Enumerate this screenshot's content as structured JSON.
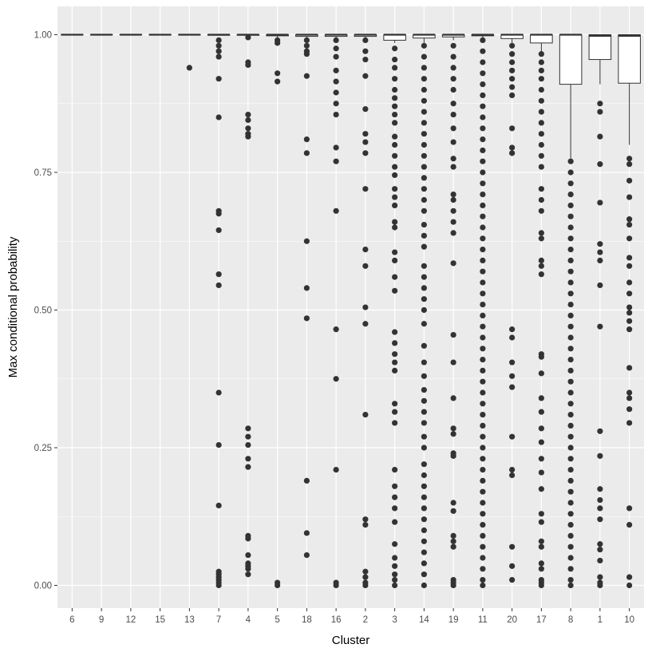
{
  "chart_data": {
    "type": "boxplot",
    "xlabel": "Cluster",
    "ylabel": "Max conditional probability",
    "ylim": [
      -0.045,
      1.05
    ],
    "yticks": [
      0.0,
      0.25,
      0.5,
      0.75,
      1.0
    ],
    "ytick_labels": [
      "0.00",
      "0.25",
      "0.50",
      "0.75",
      "1.00"
    ],
    "grid": true,
    "legend": "none",
    "colors": {
      "panel": "#ebebeb",
      "grid": "#ffffff",
      "point": "#333333",
      "box_fill": "#ffffff",
      "box_line": "#333333"
    },
    "categories": [
      "6",
      "9",
      "12",
      "15",
      "13",
      "7",
      "4",
      "5",
      "18",
      "16",
      "2",
      "3",
      "14",
      "19",
      "11",
      "20",
      "17",
      "8",
      "1",
      "10"
    ],
    "boxes": [
      {
        "cluster": "6",
        "q1": 1.0,
        "median": 1.0,
        "q3": 1.0,
        "whisker_low": 1.0,
        "whisker_high": 1.0,
        "outliers": []
      },
      {
        "cluster": "9",
        "q1": 1.0,
        "median": 1.0,
        "q3": 1.0,
        "whisker_low": 1.0,
        "whisker_high": 1.0,
        "outliers": []
      },
      {
        "cluster": "12",
        "q1": 1.0,
        "median": 1.0,
        "q3": 1.0,
        "whisker_low": 1.0,
        "whisker_high": 1.0,
        "outliers": []
      },
      {
        "cluster": "15",
        "q1": 1.0,
        "median": 1.0,
        "q3": 1.0,
        "whisker_low": 1.0,
        "whisker_high": 1.0,
        "outliers": []
      },
      {
        "cluster": "13",
        "q1": 1.0,
        "median": 1.0,
        "q3": 1.0,
        "whisker_low": 1.0,
        "whisker_high": 1.0,
        "outliers": [
          0.94
        ]
      },
      {
        "cluster": "7",
        "q1": 0.999,
        "median": 1.0,
        "q3": 1.0,
        "whisker_low": 0.998,
        "whisker_high": 1.0,
        "outliers": [
          0.99,
          0.98,
          0.97,
          0.96,
          0.92,
          0.85,
          0.68,
          0.675,
          0.645,
          0.565,
          0.545,
          0.35,
          0.255,
          0.145,
          0.025,
          0.02,
          0.015,
          0.01,
          0.005,
          0.0
        ]
      },
      {
        "cluster": "4",
        "q1": 0.999,
        "median": 1.0,
        "q3": 1.0,
        "whisker_low": 0.997,
        "whisker_high": 1.0,
        "outliers": [
          0.995,
          0.95,
          0.945,
          0.855,
          0.845,
          0.83,
          0.82,
          0.815,
          0.285,
          0.27,
          0.255,
          0.23,
          0.215,
          0.09,
          0.085,
          0.055,
          0.04,
          0.035,
          0.03,
          0.02
        ]
      },
      {
        "cluster": "5",
        "q1": 0.998,
        "median": 1.0,
        "q3": 1.0,
        "whisker_low": 0.995,
        "whisker_high": 1.0,
        "outliers": [
          0.99,
          0.985,
          0.93,
          0.915,
          0.005,
          0.0
        ]
      },
      {
        "cluster": "18",
        "q1": 0.997,
        "median": 1.0,
        "q3": 1.0,
        "whisker_low": 0.995,
        "whisker_high": 1.0,
        "outliers": [
          0.99,
          0.98,
          0.97,
          0.965,
          0.925,
          0.81,
          0.785,
          0.625,
          0.54,
          0.485,
          0.19,
          0.095,
          0.055
        ]
      },
      {
        "cluster": "16",
        "q1": 0.997,
        "median": 1.0,
        "q3": 1.0,
        "whisker_low": 0.995,
        "whisker_high": 1.0,
        "outliers": [
          0.99,
          0.975,
          0.96,
          0.935,
          0.915,
          0.895,
          0.875,
          0.855,
          0.795,
          0.77,
          0.68,
          0.465,
          0.375,
          0.21,
          0.005,
          0.0
        ]
      },
      {
        "cluster": "2",
        "q1": 0.997,
        "median": 1.0,
        "q3": 1.0,
        "whisker_low": 0.995,
        "whisker_high": 1.0,
        "outliers": [
          0.99,
          0.97,
          0.955,
          0.925,
          0.865,
          0.82,
          0.805,
          0.785,
          0.72,
          0.61,
          0.58,
          0.505,
          0.475,
          0.31,
          0.12,
          0.11,
          0.025,
          0.015,
          0.005,
          0.0
        ]
      },
      {
        "cluster": "3",
        "q1": 0.99,
        "median": 1.0,
        "q3": 1.0,
        "whisker_low": 0.985,
        "whisker_high": 1.0,
        "outliers": [
          0.975,
          0.955,
          0.94,
          0.92,
          0.9,
          0.885,
          0.87,
          0.855,
          0.84,
          0.815,
          0.8,
          0.78,
          0.76,
          0.745,
          0.72,
          0.705,
          0.69,
          0.66,
          0.65,
          0.605,
          0.59,
          0.56,
          0.535,
          0.46,
          0.44,
          0.42,
          0.405,
          0.39,
          0.33,
          0.315,
          0.295,
          0.21,
          0.18,
          0.16,
          0.14,
          0.115,
          0.075,
          0.05,
          0.035,
          0.02,
          0.01,
          0.0
        ]
      },
      {
        "cluster": "14",
        "q1": 0.994,
        "median": 1.0,
        "q3": 1.0,
        "whisker_low": 0.985,
        "whisker_high": 1.0,
        "outliers": [
          0.98,
          0.96,
          0.94,
          0.92,
          0.9,
          0.88,
          0.86,
          0.84,
          0.82,
          0.8,
          0.78,
          0.76,
          0.74,
          0.72,
          0.7,
          0.68,
          0.655,
          0.635,
          0.615,
          0.58,
          0.56,
          0.54,
          0.52,
          0.5,
          0.475,
          0.435,
          0.405,
          0.38,
          0.355,
          0.335,
          0.315,
          0.295,
          0.27,
          0.25,
          0.22,
          0.2,
          0.18,
          0.16,
          0.14,
          0.12,
          0.1,
          0.08,
          0.06,
          0.04,
          0.02,
          0.0
        ]
      },
      {
        "cluster": "19",
        "q1": 0.996,
        "median": 1.0,
        "q3": 1.0,
        "whisker_low": 0.99,
        "whisker_high": 1.0,
        "outliers": [
          0.98,
          0.96,
          0.94,
          0.92,
          0.9,
          0.875,
          0.855,
          0.83,
          0.805,
          0.775,
          0.76,
          0.71,
          0.7,
          0.68,
          0.66,
          0.64,
          0.585,
          0.455,
          0.405,
          0.34,
          0.285,
          0.275,
          0.24,
          0.235,
          0.15,
          0.135,
          0.09,
          0.08,
          0.07,
          0.01,
          0.005,
          0.0
        ]
      },
      {
        "cluster": "11",
        "q1": 0.998,
        "median": 1.0,
        "q3": 1.0,
        "whisker_low": 0.995,
        "whisker_high": 1.0,
        "outliers": [
          0.99,
          0.97,
          0.95,
          0.93,
          0.91,
          0.89,
          0.87,
          0.85,
          0.83,
          0.81,
          0.79,
          0.77,
          0.75,
          0.73,
          0.71,
          0.69,
          0.67,
          0.65,
          0.63,
          0.61,
          0.59,
          0.57,
          0.55,
          0.53,
          0.51,
          0.49,
          0.47,
          0.45,
          0.43,
          0.41,
          0.39,
          0.37,
          0.35,
          0.33,
          0.31,
          0.29,
          0.27,
          0.25,
          0.23,
          0.21,
          0.19,
          0.17,
          0.15,
          0.13,
          0.11,
          0.09,
          0.07,
          0.05,
          0.03,
          0.01,
          0.0
        ]
      },
      {
        "cluster": "20",
        "q1": 0.993,
        "median": 1.0,
        "q3": 1.0,
        "whisker_low": 0.985,
        "whisker_high": 1.0,
        "outliers": [
          0.98,
          0.965,
          0.95,
          0.935,
          0.92,
          0.905,
          0.89,
          0.83,
          0.795,
          0.785,
          0.465,
          0.45,
          0.405,
          0.38,
          0.36,
          0.27,
          0.21,
          0.2,
          0.07,
          0.035,
          0.01
        ]
      },
      {
        "cluster": "17",
        "q1": 0.985,
        "median": 1.0,
        "q3": 1.0,
        "whisker_low": 0.97,
        "whisker_high": 1.0,
        "outliers": [
          0.965,
          0.95,
          0.935,
          0.92,
          0.9,
          0.88,
          0.86,
          0.84,
          0.82,
          0.8,
          0.78,
          0.76,
          0.72,
          0.7,
          0.68,
          0.64,
          0.63,
          0.59,
          0.58,
          0.565,
          0.42,
          0.415,
          0.385,
          0.34,
          0.315,
          0.285,
          0.26,
          0.23,
          0.205,
          0.175,
          0.13,
          0.115,
          0.08,
          0.07,
          0.04,
          0.03,
          0.01,
          0.005,
          0.0
        ]
      },
      {
        "cluster": "8",
        "q1": 0.91,
        "median": 1.0,
        "q3": 1.0,
        "whisker_low": 0.775,
        "whisker_high": 1.0,
        "outliers": [
          0.77,
          0.75,
          0.73,
          0.71,
          0.69,
          0.67,
          0.65,
          0.63,
          0.61,
          0.59,
          0.57,
          0.55,
          0.53,
          0.51,
          0.49,
          0.47,
          0.45,
          0.43,
          0.41,
          0.39,
          0.37,
          0.35,
          0.33,
          0.31,
          0.29,
          0.27,
          0.25,
          0.23,
          0.21,
          0.19,
          0.17,
          0.15,
          0.13,
          0.11,
          0.09,
          0.07,
          0.05,
          0.03,
          0.01,
          0.0
        ]
      },
      {
        "cluster": "1",
        "q1": 0.955,
        "median": 0.998,
        "q3": 1.0,
        "whisker_low": 0.91,
        "whisker_high": 1.0,
        "outliers": [
          0.875,
          0.86,
          0.815,
          0.765,
          0.695,
          0.62,
          0.605,
          0.59,
          0.545,
          0.47,
          0.28,
          0.235,
          0.175,
          0.155,
          0.14,
          0.12,
          0.075,
          0.065,
          0.045,
          0.015,
          0.005,
          0.0
        ]
      },
      {
        "cluster": "10",
        "q1": 0.912,
        "median": 0.998,
        "q3": 1.0,
        "whisker_low": 0.8,
        "whisker_high": 1.0,
        "outliers": [
          0.775,
          0.765,
          0.735,
          0.705,
          0.665,
          0.655,
          0.63,
          0.595,
          0.58,
          0.55,
          0.53,
          0.505,
          0.495,
          0.48,
          0.465,
          0.395,
          0.35,
          0.34,
          0.32,
          0.295,
          0.14,
          0.11,
          0.015,
          0.0
        ]
      }
    ]
  }
}
